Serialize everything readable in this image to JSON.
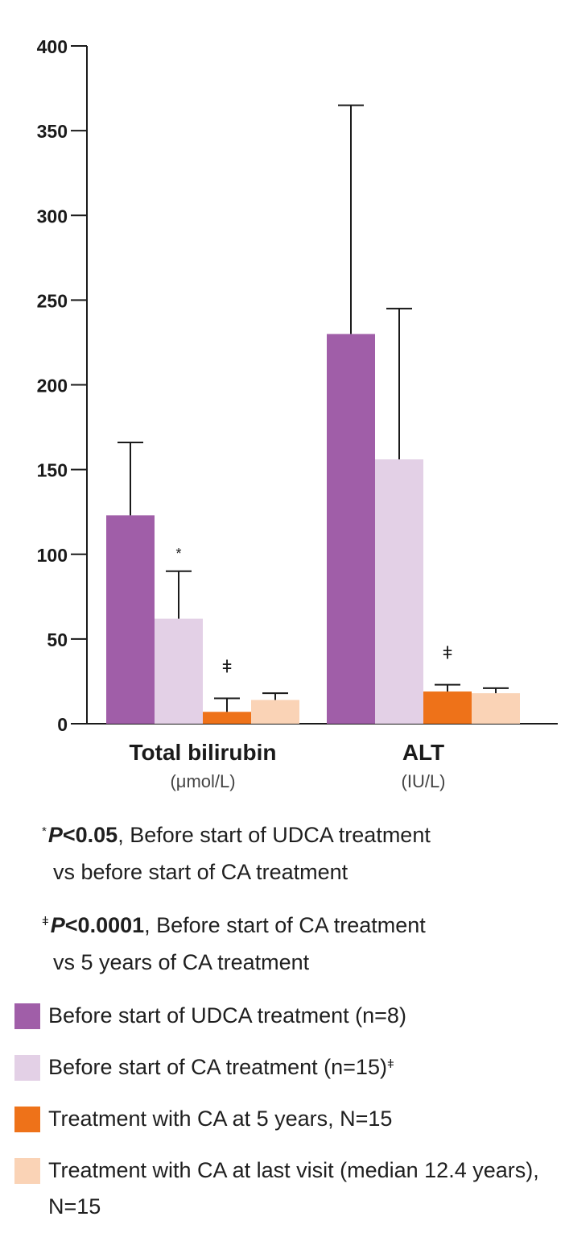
{
  "chart_data": {
    "type": "bar",
    "categories": [
      "Total bilirubin",
      "ALT"
    ],
    "category_units": [
      "(μmol/L)",
      "(IU/L)"
    ],
    "ylim": [
      0,
      400
    ],
    "yticks": [
      0,
      50,
      100,
      150,
      200,
      250,
      300,
      350,
      400
    ],
    "series": [
      {
        "name": "Before start of UDCA treatment (n=8)",
        "color": "#a05ea8",
        "values": [
          123,
          230
        ],
        "error_upper": [
          166,
          365
        ]
      },
      {
        "name": "Before start of CA treatment (n=15)",
        "color": "#e3d0e6",
        "values": [
          62,
          156
        ],
        "error_upper": [
          90,
          245
        ]
      },
      {
        "name": "Treatment with CA at 5 years, N=15",
        "color": "#ee7219",
        "values": [
          7,
          19
        ],
        "error_upper": [
          15,
          23
        ]
      },
      {
        "name": "Treatment with CA at last visit (median 12.4 years), N=15",
        "color": "#fad3b6",
        "values": [
          14,
          18
        ],
        "error_upper": [
          18,
          21
        ]
      }
    ],
    "annotations": [
      {
        "category": 0,
        "series": 1,
        "symbol": "*"
      },
      {
        "category": 0,
        "series": 2,
        "symbol": "ǂ"
      },
      {
        "category": 1,
        "series": 2,
        "symbol": "ǂ"
      }
    ]
  },
  "footnotes": [
    {
      "mark": "*",
      "p": "P",
      "stat": "<0.05",
      "line1": ", Before start of UDCA treatment",
      "line2": "vs before start of CA treatment"
    },
    {
      "mark": "ǂ",
      "p": "P",
      "stat": "<0.0001",
      "line1": ", Before start of CA treatment",
      "line2": "vs 5 years of CA treatment"
    }
  ],
  "legend": [
    {
      "label": "Before start of UDCA treatment (n=8)",
      "sup": "",
      "color": "#a05ea8"
    },
    {
      "label": "Before start of CA treatment (n=15)",
      "sup": "ǂ",
      "color": "#e3d0e6"
    },
    {
      "label": "Treatment with CA at 5 years, N=15",
      "sup": "",
      "color": "#ee7219"
    },
    {
      "label": "Treatment with CA at last visit (median 12.4 years), N=15",
      "sup": "",
      "color": "#fad3b6"
    }
  ]
}
